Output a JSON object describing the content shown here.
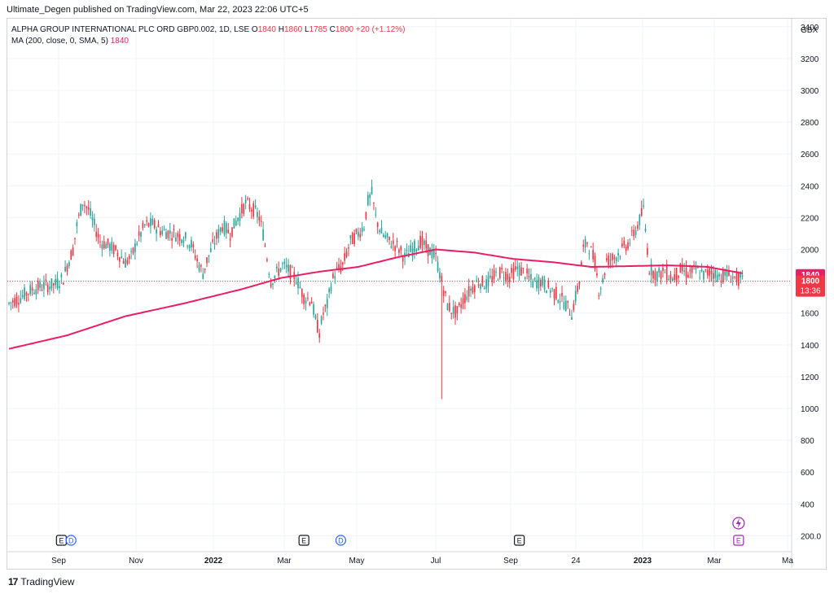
{
  "header": {
    "publish_line": "Ultimate_Degen published on TradingView.com, Mar 22, 2023 22:06 UTC+5"
  },
  "legend": {
    "symbol": "ALPHA GROUP INTERNATIONAL PLC ORD GBP0.002, 1D, LSE",
    "o_label": "O",
    "o_value": "1840",
    "h_label": "H",
    "h_value": "1860",
    "l_label": "L",
    "l_value": "1785",
    "c_label": "C",
    "c_value": "1800",
    "change": "+20 (+1.12%)",
    "ma_label": "MA (200, close, 0, SMA, 5)",
    "ma_value": "1840"
  },
  "footer": {
    "brand": "TradingView",
    "logo_text": "17"
  },
  "colors": {
    "up": "#26a69a",
    "down": "#f23645",
    "ma": "#e91e63",
    "grid": "#f0f3fa",
    "axis_text": "#131722"
  },
  "chart_data": {
    "type": "candlestick",
    "currency_label": "GBX",
    "y_ticks": [
      "3400",
      "3200",
      "3000",
      "2800",
      "2600",
      "2400",
      "2200",
      "2000",
      "1800",
      "1600",
      "1400",
      "1200",
      "1000",
      "800",
      "600",
      "400",
      "200.0"
    ],
    "ylim": [
      100,
      3450
    ],
    "x_ticks": [
      "Sep",
      "Nov",
      "2022",
      "Mar",
      "May",
      "Jul",
      "Sep",
      "24",
      "2023",
      "Mar",
      "Ma"
    ],
    "last_price": "1800",
    "ma_last": "1840",
    "countdown": "13:36",
    "price_anchors": [
      [
        0,
        1660
      ],
      [
        6,
        1700
      ],
      [
        12,
        1750
      ],
      [
        18,
        1770
      ],
      [
        24,
        1780
      ],
      [
        28,
        1820
      ],
      [
        30,
        1900
      ],
      [
        33,
        2000
      ],
      [
        35,
        2150
      ],
      [
        38,
        2300
      ],
      [
        41,
        2250
      ],
      [
        44,
        2150
      ],
      [
        47,
        2050
      ],
      [
        52,
        2020
      ],
      [
        56,
        1980
      ],
      [
        60,
        1920
      ],
      [
        63,
        1950
      ],
      [
        66,
        2050
      ],
      [
        70,
        2150
      ],
      [
        74,
        2160
      ],
      [
        78,
        2120
      ],
      [
        84,
        2100
      ],
      [
        90,
        2080
      ],
      [
        94,
        2030
      ],
      [
        98,
        1900
      ],
      [
        100,
        1850
      ],
      [
        102,
        1930
      ],
      [
        106,
        2050
      ],
      [
        110,
        2150
      ],
      [
        114,
        2100
      ],
      [
        118,
        2200
      ],
      [
        122,
        2290
      ],
      [
        126,
        2250
      ],
      [
        129,
        2200
      ],
      [
        131,
        2100
      ],
      [
        133,
        1950
      ],
      [
        135,
        1800
      ],
      [
        138,
        1850
      ],
      [
        141,
        1900
      ],
      [
        144,
        1870
      ],
      [
        148,
        1820
      ],
      [
        152,
        1700
      ],
      [
        156,
        1680
      ],
      [
        158,
        1550
      ],
      [
        160,
        1480
      ],
      [
        162,
        1600
      ],
      [
        164,
        1650
      ],
      [
        166,
        1780
      ],
      [
        168,
        1850
      ],
      [
        172,
        1900
      ],
      [
        176,
        2050
      ],
      [
        180,
        2100
      ],
      [
        183,
        2150
      ],
      [
        185,
        2300
      ],
      [
        187,
        2350
      ],
      [
        189,
        2200
      ],
      [
        192,
        2100
      ],
      [
        196,
        2050
      ],
      [
        200,
        2020
      ],
      [
        204,
        1950
      ],
      [
        208,
        2000
      ],
      [
        212,
        2050
      ],
      [
        216,
        2000
      ],
      [
        220,
        1950
      ],
      [
        222,
        1850
      ],
      [
        224,
        1750
      ],
      [
        226,
        1650
      ],
      [
        228,
        1620
      ],
      [
        231,
        1600
      ],
      [
        234,
        1680
      ],
      [
        238,
        1750
      ],
      [
        242,
        1800
      ],
      [
        246,
        1780
      ],
      [
        250,
        1830
      ],
      [
        254,
        1860
      ],
      [
        258,
        1830
      ],
      [
        262,
        1880
      ],
      [
        266,
        1850
      ],
      [
        270,
        1790
      ],
      [
        274,
        1800
      ],
      [
        278,
        1760
      ],
      [
        282,
        1720
      ],
      [
        286,
        1670
      ],
      [
        290,
        1600
      ],
      [
        292,
        1700
      ],
      [
        294,
        1800
      ],
      [
        296,
        2000
      ],
      [
        298,
        2050
      ],
      [
        302,
        1920
      ],
      [
        304,
        1750
      ],
      [
        306,
        1800
      ],
      [
        308,
        1930
      ],
      [
        312,
        1950
      ],
      [
        316,
        2000
      ],
      [
        320,
        2050
      ],
      [
        324,
        2150
      ],
      [
        327,
        2250
      ],
      [
        330,
        1880
      ],
      [
        334,
        1840
      ],
      [
        338,
        1860
      ],
      [
        342,
        1820
      ],
      [
        346,
        1870
      ],
      [
        350,
        1850
      ],
      [
        354,
        1870
      ],
      [
        358,
        1840
      ],
      [
        362,
        1860
      ],
      [
        366,
        1830
      ],
      [
        370,
        1840
      ],
      [
        375,
        1820
      ],
      [
        378,
        1800
      ]
    ],
    "spike": {
      "index": 223,
      "low": 1060
    },
    "ma_anchors": [
      [
        0,
        1375
      ],
      [
        30,
        1460
      ],
      [
        60,
        1580
      ],
      [
        90,
        1660
      ],
      [
        120,
        1750
      ],
      [
        140,
        1820
      ],
      [
        160,
        1860
      ],
      [
        180,
        1890
      ],
      [
        200,
        1950
      ],
      [
        220,
        2000
      ],
      [
        240,
        1980
      ],
      [
        260,
        1940
      ],
      [
        280,
        1920
      ],
      [
        300,
        1890
      ],
      [
        320,
        1895
      ],
      [
        340,
        1900
      ],
      [
        360,
        1890
      ],
      [
        378,
        1850
      ]
    ],
    "event_markers": [
      {
        "letter": "E",
        "kind": "earnings",
        "x_index": 27
      },
      {
        "letter": "D",
        "kind": "dividend",
        "x_index": 32
      },
      {
        "letter": "E",
        "kind": "earnings",
        "x_index": 152
      },
      {
        "letter": "D",
        "kind": "dividend",
        "x_index": 171
      },
      {
        "letter": "E",
        "kind": "earnings",
        "x_index": 263
      },
      {
        "letter": "E",
        "kind": "earnings-upcoming",
        "x_index": 376
      }
    ]
  }
}
